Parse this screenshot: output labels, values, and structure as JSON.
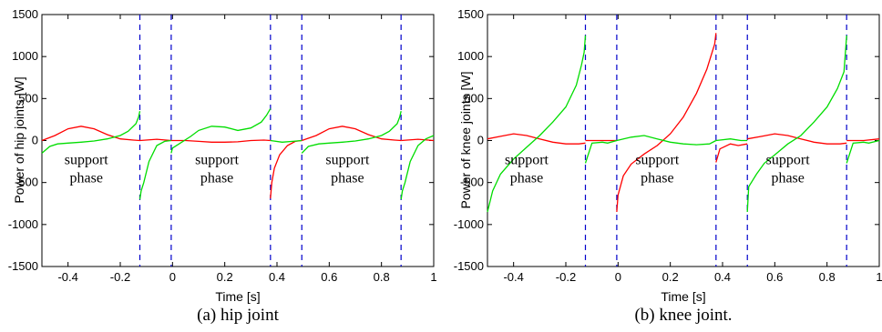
{
  "chart_data": [
    {
      "type": "line",
      "caption": "(a) hip joint",
      "xlabel": "Time [s]",
      "ylabel": "Power of hip joints [W]",
      "xlim": [
        -0.5,
        1
      ],
      "ylim": [
        -1500,
        1500
      ],
      "xticks": [
        -0.4,
        -0.2,
        0,
        0.2,
        0.4,
        0.6,
        0.8,
        1
      ],
      "xtick_labels": [
        "-0.4",
        "-0.2",
        "0",
        "0.2",
        "0.4",
        "0.6",
        "0.8",
        "1"
      ],
      "yticks": [
        1500,
        1000,
        500,
        0,
        -500,
        -1000,
        -1500
      ],
      "ytick_labels": [
        "1500",
        "1000",
        "500",
        "0",
        "-500",
        "-1000",
        "-1500"
      ],
      "vlines": [
        -0.125,
        -0.005,
        0.375,
        0.495,
        0.875
      ],
      "annotations": [
        {
          "line1": "support",
          "line2": "phase",
          "x": -0.33,
          "y": -280
        },
        {
          "line1": "support",
          "line2": "phase",
          "x": 0.17,
          "y": -280
        },
        {
          "line1": "support",
          "line2": "phase",
          "x": 0.67,
          "y": -280
        }
      ],
      "series": [
        {
          "color": "#ff0000",
          "segments": [
            [
              [
                -0.5,
                0
              ],
              [
                -0.45,
                60
              ],
              [
                -0.4,
                140
              ],
              [
                -0.35,
                170
              ],
              [
                -0.3,
                140
              ],
              [
                -0.25,
                70
              ],
              [
                -0.2,
                20
              ],
              [
                -0.15,
                5
              ],
              [
                -0.125,
                0
              ]
            ],
            [
              [
                -0.125,
                0
              ],
              [
                -0.06,
                15
              ],
              [
                -0.005,
                0
              ]
            ],
            [
              [
                -0.005,
                0
              ],
              [
                0.05,
                0
              ],
              [
                0.1,
                -10
              ],
              [
                0.15,
                -20
              ],
              [
                0.2,
                -20
              ],
              [
                0.25,
                -15
              ],
              [
                0.3,
                0
              ],
              [
                0.35,
                5
              ],
              [
                0.375,
                0
              ]
            ],
            [
              [
                0.375,
                -690
              ],
              [
                0.38,
                -500
              ],
              [
                0.39,
                -330
              ],
              [
                0.41,
                -170
              ],
              [
                0.44,
                -60
              ],
              [
                0.47,
                -10
              ],
              [
                0.495,
                0
              ]
            ],
            [
              [
                0.495,
                0
              ],
              [
                0.55,
                60
              ],
              [
                0.6,
                140
              ],
              [
                0.65,
                170
              ],
              [
                0.7,
                140
              ],
              [
                0.75,
                70
              ],
              [
                0.8,
                20
              ],
              [
                0.85,
                5
              ],
              [
                0.875,
                0
              ]
            ],
            [
              [
                0.875,
                0
              ],
              [
                0.94,
                15
              ],
              [
                1.0,
                0
              ]
            ]
          ]
        },
        {
          "color": "#00dd00",
          "segments": [
            [
              [
                -0.5,
                -150
              ],
              [
                -0.47,
                -70
              ],
              [
                -0.44,
                -40
              ],
              [
                -0.4,
                -30
              ],
              [
                -0.35,
                -20
              ],
              [
                -0.3,
                -5
              ],
              [
                -0.25,
                20
              ],
              [
                -0.2,
                60
              ],
              [
                -0.17,
                110
              ],
              [
                -0.14,
                200
              ],
              [
                -0.13,
                280
              ],
              [
                -0.125,
                350
              ]
            ],
            [
              [
                -0.125,
                -700
              ],
              [
                -0.12,
                -600
              ],
              [
                -0.11,
                -500
              ],
              [
                -0.09,
                -250
              ],
              [
                -0.06,
                -60
              ],
              [
                -0.03,
                -10
              ],
              [
                -0.005,
                0
              ]
            ],
            [
              [
                -0.005,
                -150
              ],
              [
                0.0,
                -90
              ],
              [
                0.03,
                -30
              ],
              [
                0.07,
                50
              ],
              [
                0.1,
                120
              ],
              [
                0.15,
                170
              ],
              [
                0.2,
                160
              ],
              [
                0.25,
                120
              ],
              [
                0.3,
                150
              ],
              [
                0.34,
                220
              ],
              [
                0.36,
                300
              ],
              [
                0.375,
                380
              ]
            ],
            [
              [
                0.375,
                0
              ],
              [
                0.42,
                -20
              ],
              [
                0.46,
                -10
              ],
              [
                0.495,
                0
              ]
            ],
            [
              [
                0.495,
                -150
              ],
              [
                0.52,
                -70
              ],
              [
                0.56,
                -40
              ],
              [
                0.6,
                -30
              ],
              [
                0.65,
                -20
              ],
              [
                0.7,
                -5
              ],
              [
                0.75,
                20
              ],
              [
                0.8,
                60
              ],
              [
                0.83,
                110
              ],
              [
                0.86,
                200
              ],
              [
                0.87,
                280
              ],
              [
                0.875,
                350
              ]
            ],
            [
              [
                0.875,
                -700
              ],
              [
                0.88,
                -600
              ],
              [
                0.89,
                -500
              ],
              [
                0.91,
                -250
              ],
              [
                0.94,
                -60
              ],
              [
                0.97,
                20
              ],
              [
                1.0,
                60
              ]
            ]
          ]
        }
      ]
    },
    {
      "type": "line",
      "caption": "(b) knee joint.",
      "xlabel": "Time [s]",
      "ylabel": "Power of knee joints [W]",
      "xlim": [
        -0.5,
        1
      ],
      "ylim": [
        -1500,
        1500
      ],
      "xticks": [
        -0.4,
        -0.2,
        0,
        0.2,
        0.4,
        0.6,
        0.8,
        1
      ],
      "xtick_labels": [
        "-0.4",
        "-0.2",
        "0",
        "0.2",
        "0.4",
        "0.6",
        "0.8",
        "1"
      ],
      "yticks": [
        1500,
        1000,
        500,
        0,
        -500,
        -1000,
        -1500
      ],
      "ytick_labels": [
        "1500",
        "1000",
        "500",
        "0",
        "-500",
        "-1000",
        "-1500"
      ],
      "vlines": [
        -0.125,
        -0.005,
        0.375,
        0.495,
        0.875
      ],
      "annotations": [
        {
          "line1": "support",
          "line2": "phase",
          "x": -0.35,
          "y": -280
        },
        {
          "line1": "support",
          "line2": "phase",
          "x": 0.15,
          "y": -280
        },
        {
          "line1": "support",
          "line2": "phase",
          "x": 0.65,
          "y": -280
        }
      ],
      "series": [
        {
          "color": "#ff0000",
          "segments": [
            [
              [
                -0.5,
                20
              ],
              [
                -0.45,
                50
              ],
              [
                -0.4,
                80
              ],
              [
                -0.35,
                60
              ],
              [
                -0.3,
                20
              ],
              [
                -0.25,
                -20
              ],
              [
                -0.2,
                -40
              ],
              [
                -0.15,
                -40
              ],
              [
                -0.125,
                -30
              ]
            ],
            [
              [
                -0.125,
                0
              ],
              [
                -0.06,
                0
              ],
              [
                -0.005,
                0
              ]
            ],
            [
              [
                -0.005,
                -850
              ],
              [
                0.0,
                -650
              ],
              [
                0.02,
                -420
              ],
              [
                0.05,
                -280
              ],
              [
                0.1,
                -160
              ],
              [
                0.15,
                -60
              ],
              [
                0.2,
                80
              ],
              [
                0.25,
                280
              ],
              [
                0.3,
                560
              ],
              [
                0.34,
                850
              ],
              [
                0.37,
                1150
              ],
              [
                0.375,
                1280
              ]
            ],
            [
              [
                0.375,
                -260
              ],
              [
                0.39,
                -100
              ],
              [
                0.43,
                -40
              ],
              [
                0.46,
                -60
              ],
              [
                0.495,
                -40
              ]
            ],
            [
              [
                0.495,
                20
              ],
              [
                0.55,
                50
              ],
              [
                0.6,
                80
              ],
              [
                0.65,
                60
              ],
              [
                0.7,
                20
              ],
              [
                0.75,
                -20
              ],
              [
                0.8,
                -40
              ],
              [
                0.85,
                -40
              ],
              [
                0.875,
                -30
              ]
            ],
            [
              [
                0.875,
                0
              ],
              [
                0.94,
                0
              ],
              [
                1.0,
                20
              ]
            ]
          ]
        },
        {
          "color": "#00dd00",
          "segments": [
            [
              [
                -0.5,
                -850
              ],
              [
                -0.48,
                -600
              ],
              [
                -0.45,
                -400
              ],
              [
                -0.4,
                -220
              ],
              [
                -0.35,
                -80
              ],
              [
                -0.3,
                60
              ],
              [
                -0.25,
                220
              ],
              [
                -0.2,
                400
              ],
              [
                -0.16,
                660
              ],
              [
                -0.14,
                900
              ],
              [
                -0.13,
                1050
              ],
              [
                -0.125,
                1250
              ]
            ],
            [
              [
                -0.125,
                -270
              ],
              [
                -0.1,
                -30
              ],
              [
                -0.06,
                -20
              ],
              [
                -0.04,
                -30
              ],
              [
                -0.005,
                0
              ]
            ],
            [
              [
                -0.005,
                0
              ],
              [
                0.05,
                40
              ],
              [
                0.1,
                60
              ],
              [
                0.15,
                20
              ],
              [
                0.2,
                -20
              ],
              [
                0.25,
                -40
              ],
              [
                0.3,
                -50
              ],
              [
                0.35,
                -40
              ],
              [
                0.375,
                0
              ]
            ],
            [
              [
                0.375,
                0
              ],
              [
                0.43,
                20
              ],
              [
                0.47,
                0
              ],
              [
                0.495,
                0
              ]
            ],
            [
              [
                0.495,
                -850
              ],
              [
                0.5,
                -550
              ],
              [
                0.53,
                -400
              ],
              [
                0.56,
                -270
              ],
              [
                0.6,
                -170
              ],
              [
                0.65,
                -40
              ],
              [
                0.7,
                60
              ],
              [
                0.75,
                220
              ],
              [
                0.8,
                400
              ],
              [
                0.84,
                620
              ],
              [
                0.865,
                820
              ],
              [
                0.875,
                1250
              ]
            ],
            [
              [
                0.875,
                -270
              ],
              [
                0.9,
                -30
              ],
              [
                0.94,
                -20
              ],
              [
                0.96,
                -30
              ],
              [
                1.0,
                0
              ]
            ]
          ]
        }
      ]
    }
  ]
}
